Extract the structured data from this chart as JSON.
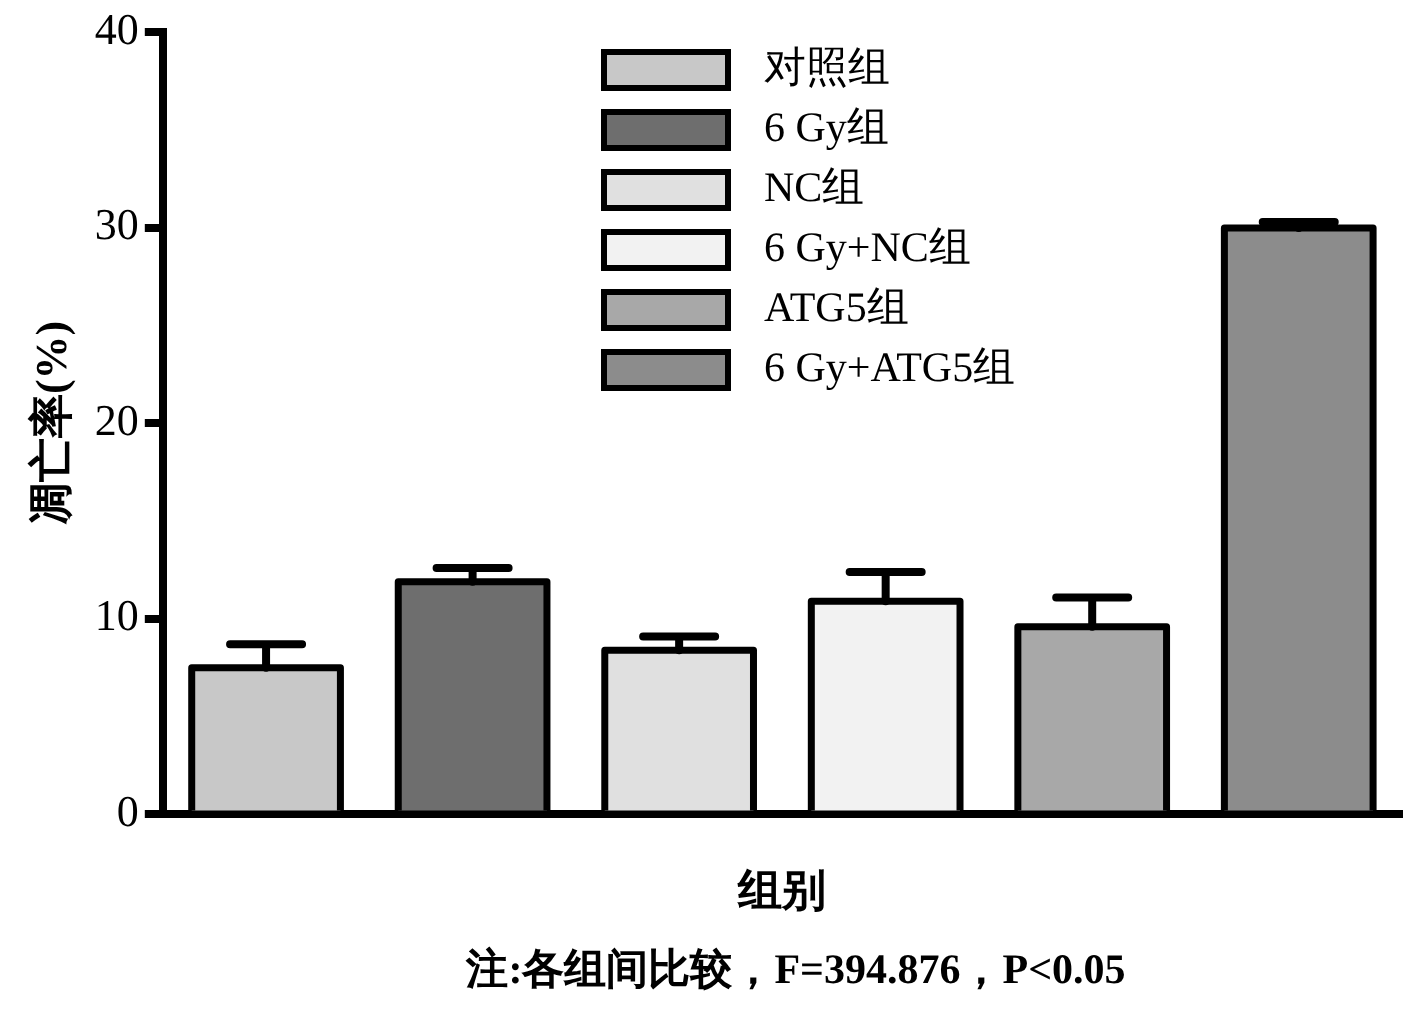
{
  "chart_data": {
    "type": "bar",
    "categories": [
      null,
      null,
      null,
      null,
      null,
      null
    ],
    "series": [
      {
        "name": "对照组",
        "color": "#c8c8c8",
        "values": [
          7.5,
          null,
          null,
          null,
          null,
          null
        ],
        "errors": [
          [
            7.5,
            8.7
          ],
          null,
          null,
          null,
          null,
          null
        ]
      },
      {
        "name": "6 Gy组",
        "color": "#6e6e6e",
        "values": [
          null,
          11.9,
          null,
          null,
          null,
          null
        ],
        "errors": [
          null,
          [
            11.9,
            12.6
          ],
          null,
          null,
          null,
          null
        ]
      },
      {
        "name": "NC组",
        "color": "#e0e0e0",
        "values": [
          null,
          null,
          8.4,
          null,
          null,
          null
        ],
        "errors": [
          null,
          null,
          [
            8.4,
            9.1
          ],
          null,
          null,
          null
        ]
      },
      {
        "name": "6 Gy+NC组",
        "color": "#f2f2f2",
        "values": [
          null,
          null,
          null,
          10.9,
          null,
          null
        ],
        "errors": [
          null,
          null,
          null,
          [
            10.9,
            12.4
          ],
          null,
          null
        ]
      },
      {
        "name": "ATG5组",
        "color": "#a8a8a8",
        "values": [
          null,
          null,
          null,
          null,
          9.6,
          null
        ],
        "errors": [
          null,
          null,
          null,
          null,
          [
            9.6,
            11.1
          ],
          null
        ]
      },
      {
        "name": "6 Gy+ATG5组",
        "color": "#8c8c8c",
        "values": [
          null,
          null,
          null,
          null,
          null,
          30
        ],
        "errors": [
          null,
          null,
          null,
          null,
          null,
          [
            30,
            30.3
          ]
        ]
      }
    ],
    "xlabel": "组别",
    "ylabel": "凋亡率(%)",
    "ylim": [
      0,
      40
    ],
    "yticks": [
      0,
      10,
      20,
      30,
      40
    ],
    "grid": false,
    "legend": "top",
    "annotations": [
      "注:各组间比较，F=394.876，P<0.05"
    ]
  }
}
